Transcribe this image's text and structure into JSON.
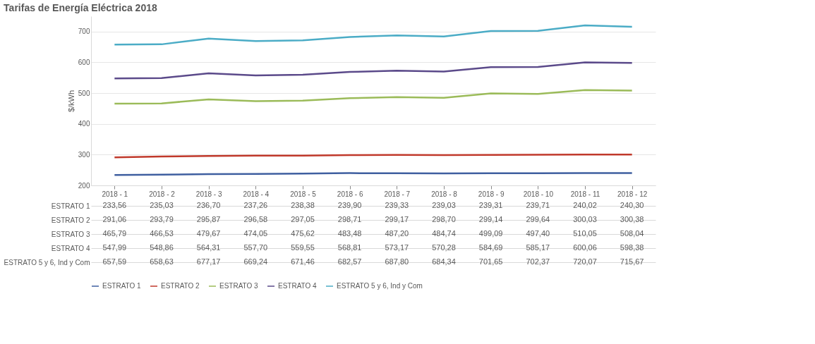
{
  "chart_data": {
    "type": "line",
    "title": "Tarifas de Energía Eléctrica 2018",
    "ylabel": "$/kWh",
    "categories": [
      "2018 - 1",
      "2018 - 2",
      "2018 - 3",
      "2018 - 4",
      "2018 - 5",
      "2018 - 6",
      "2018 - 7",
      "2018 - 8",
      "2018 - 9",
      "2018 - 10",
      "2018 - 11",
      "2018 - 12"
    ],
    "ylim": [
      200,
      750
    ],
    "yticks": [
      200,
      300,
      400,
      500,
      600,
      700
    ],
    "grid": "y",
    "legend": "bottom",
    "series": [
      {
        "name": "ESTRATO 1",
        "color": "#3f5fa0",
        "values": [
          233.56,
          235.03,
          236.7,
          237.26,
          238.38,
          239.9,
          239.33,
          239.03,
          239.31,
          239.71,
          240.02,
          240.3
        ],
        "value_labels": [
          "233,56",
          "235,03",
          "236,70",
          "237,26",
          "238,38",
          "239,90",
          "239,33",
          "239,03",
          "239,31",
          "239,71",
          "240,02",
          "240,30"
        ]
      },
      {
        "name": "ESTRATO 2",
        "color": "#c0392b",
        "values": [
          291.06,
          293.79,
          295.87,
          296.58,
          297.05,
          298.71,
          299.17,
          298.7,
          299.14,
          299.64,
          300.03,
          300.38
        ],
        "value_labels": [
          "291,06",
          "293,79",
          "295,87",
          "296,58",
          "297,05",
          "298,71",
          "299,17",
          "298,70",
          "299,14",
          "299,64",
          "300,03",
          "300,38"
        ]
      },
      {
        "name": "ESTRATO 3",
        "color": "#9bbb59",
        "values": [
          465.79,
          466.53,
          479.67,
          474.05,
          475.62,
          483.48,
          487.2,
          484.74,
          499.09,
          497.4,
          510.05,
          508.04
        ],
        "value_labels": [
          "465,79",
          "466,53",
          "479,67",
          "474,05",
          "475,62",
          "483,48",
          "487,20",
          "484,74",
          "499,09",
          "497,40",
          "510,05",
          "508,04"
        ]
      },
      {
        "name": "ESTRATO 4",
        "color": "#5b4a8a",
        "values": [
          547.99,
          548.86,
          564.31,
          557.7,
          559.55,
          568.81,
          573.17,
          570.28,
          584.69,
          585.17,
          600.06,
          598.38
        ],
        "value_labels": [
          "547,99",
          "548,86",
          "564,31",
          "557,70",
          "559,55",
          "568,81",
          "573,17",
          "570,28",
          "584,69",
          "585,17",
          "600,06",
          "598,38"
        ]
      },
      {
        "name": "ESTRATO 5 y 6, Ind y Com",
        "color": "#4bacc6",
        "values": [
          657.59,
          658.63,
          677.17,
          669.24,
          671.46,
          682.57,
          687.8,
          684.34,
          701.65,
          702.37,
          720.07,
          715.67
        ],
        "value_labels": [
          "657,59",
          "658,63",
          "677,17",
          "669,24",
          "671,46",
          "682,57",
          "687,80",
          "684,34",
          "701,65",
          "702,37",
          "720,07",
          "715,67"
        ]
      }
    ]
  }
}
